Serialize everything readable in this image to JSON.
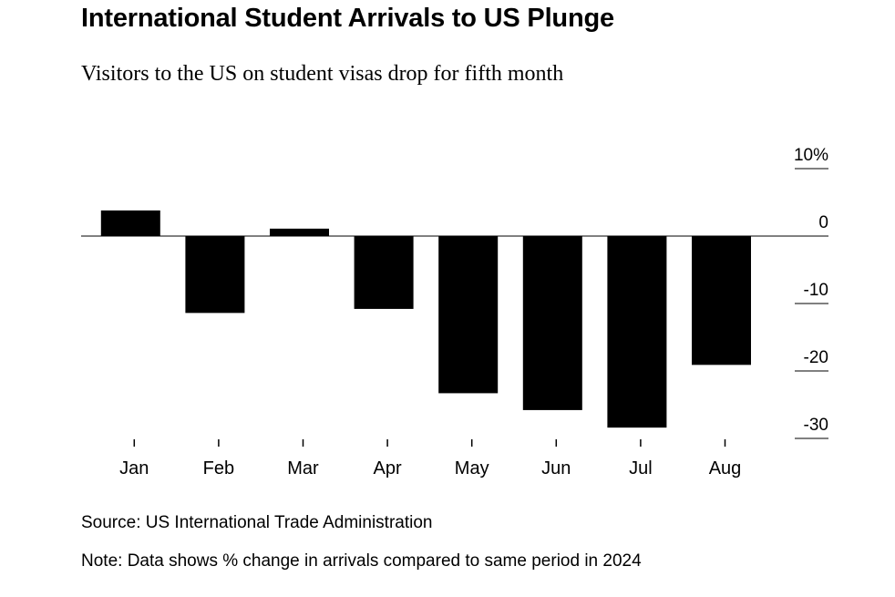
{
  "title": "International Student Arrivals to US Plunge",
  "subtitle": "Visitors to the US on student visas drop for fifth month",
  "source": "Source: US International Trade Administration",
  "note": "Note: Data shows % change in arrivals compared to same period in 2024",
  "chart_data": {
    "type": "bar",
    "categories": [
      "Jan",
      "Feb",
      "Mar",
      "Apr",
      "May",
      "Jun",
      "Jul",
      "Aug"
    ],
    "values": [
      3.8,
      -11.4,
      1.1,
      -10.8,
      -23.3,
      -25.8,
      -28.4,
      -19.1
    ],
    "ylim": [
      -30,
      10
    ],
    "yticks": [
      10,
      0,
      -10,
      -20,
      -30
    ],
    "ytick_labels": [
      "10%",
      "0",
      "-10",
      "-20",
      "-30"
    ],
    "y_axis_side": "right",
    "grid": false,
    "bar_color": "#000000"
  }
}
